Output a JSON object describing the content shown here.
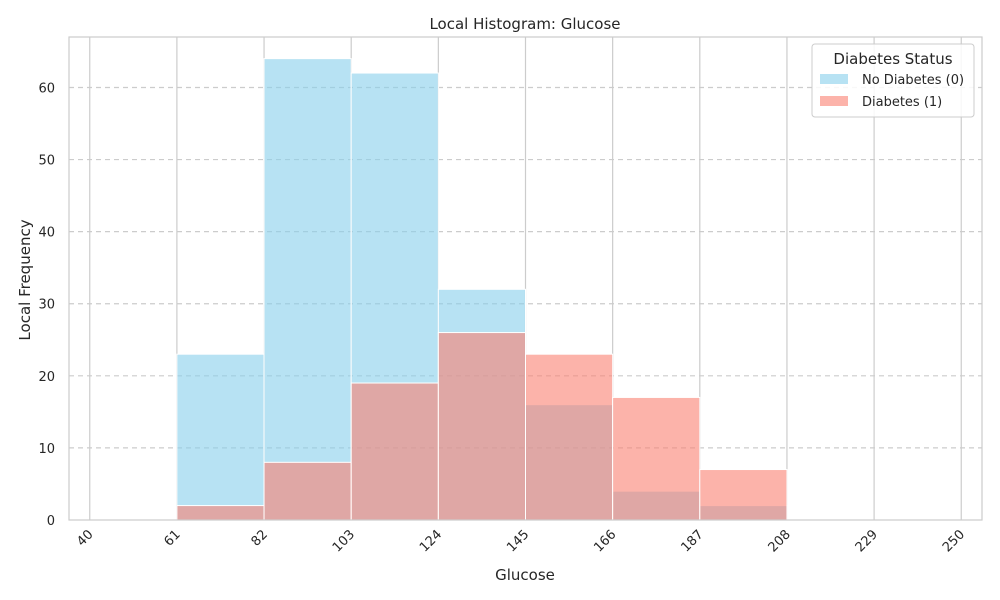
{
  "chart_data": {
    "type": "bar",
    "title": "Local Histogram: Glucose",
    "xlabel": "Glucose",
    "ylabel": "Local Frequency",
    "xlim": [
      35,
      255
    ],
    "ylim": [
      0,
      67
    ],
    "xticks": [
      40,
      61,
      82,
      103,
      124,
      145,
      166,
      187,
      208,
      229,
      250
    ],
    "yticks": [
      0,
      10,
      20,
      30,
      40,
      50,
      60
    ],
    "bin_edges": [
      40,
      61,
      82,
      103,
      124,
      145,
      166,
      187,
      208,
      229,
      250
    ],
    "grid": true,
    "legend": {
      "title": "Diabetes Status",
      "placement": "top-right"
    },
    "series": [
      {
        "name": "No Diabetes (0)",
        "color": "#87CEEB",
        "values": [
          0,
          23,
          64,
          62,
          32,
          16,
          4,
          2,
          0,
          0
        ]
      },
      {
        "name": "Diabetes (1)",
        "color": "#FA8072",
        "values": [
          0,
          2,
          8,
          19,
          26,
          23,
          17,
          7,
          0,
          0
        ]
      }
    ]
  }
}
